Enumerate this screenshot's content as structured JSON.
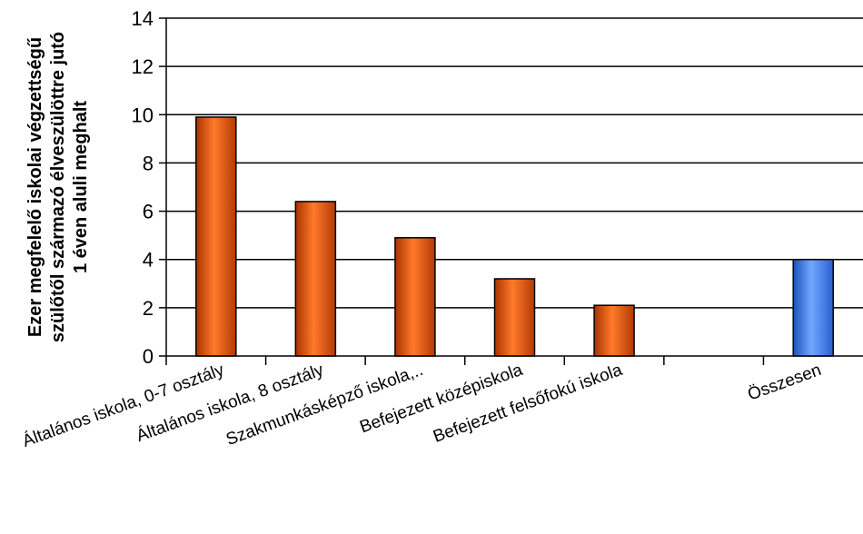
{
  "chart_data": {
    "type": "bar",
    "title": "",
    "xlabel": "",
    "ylabel_lines": [
      "Ezer megfelelő iskolai végzettségű",
      "szülőtől származó élveszülöttre jutó",
      "1 éven aluli meghalt"
    ],
    "categories": [
      "Általános iskola, 0-7 osztály",
      "Általános iskola, 8 osztály",
      "Szakmunkásképző iskola,..",
      "Befejezett középiskola",
      "Befejezett felsőfokú iskola",
      "",
      "Összesen"
    ],
    "values": [
      9.9,
      6.4,
      4.9,
      3.2,
      2.1,
      null,
      4.0
    ],
    "colors": [
      "#d04a0a",
      "#d04a0a",
      "#d04a0a",
      "#d04a0a",
      "#d04a0a",
      null,
      "#3a78e0"
    ],
    "ylim": [
      0,
      14
    ],
    "yticks": [
      0,
      2,
      4,
      6,
      8,
      10,
      12,
      14
    ],
    "grid": true,
    "legend": "none"
  }
}
